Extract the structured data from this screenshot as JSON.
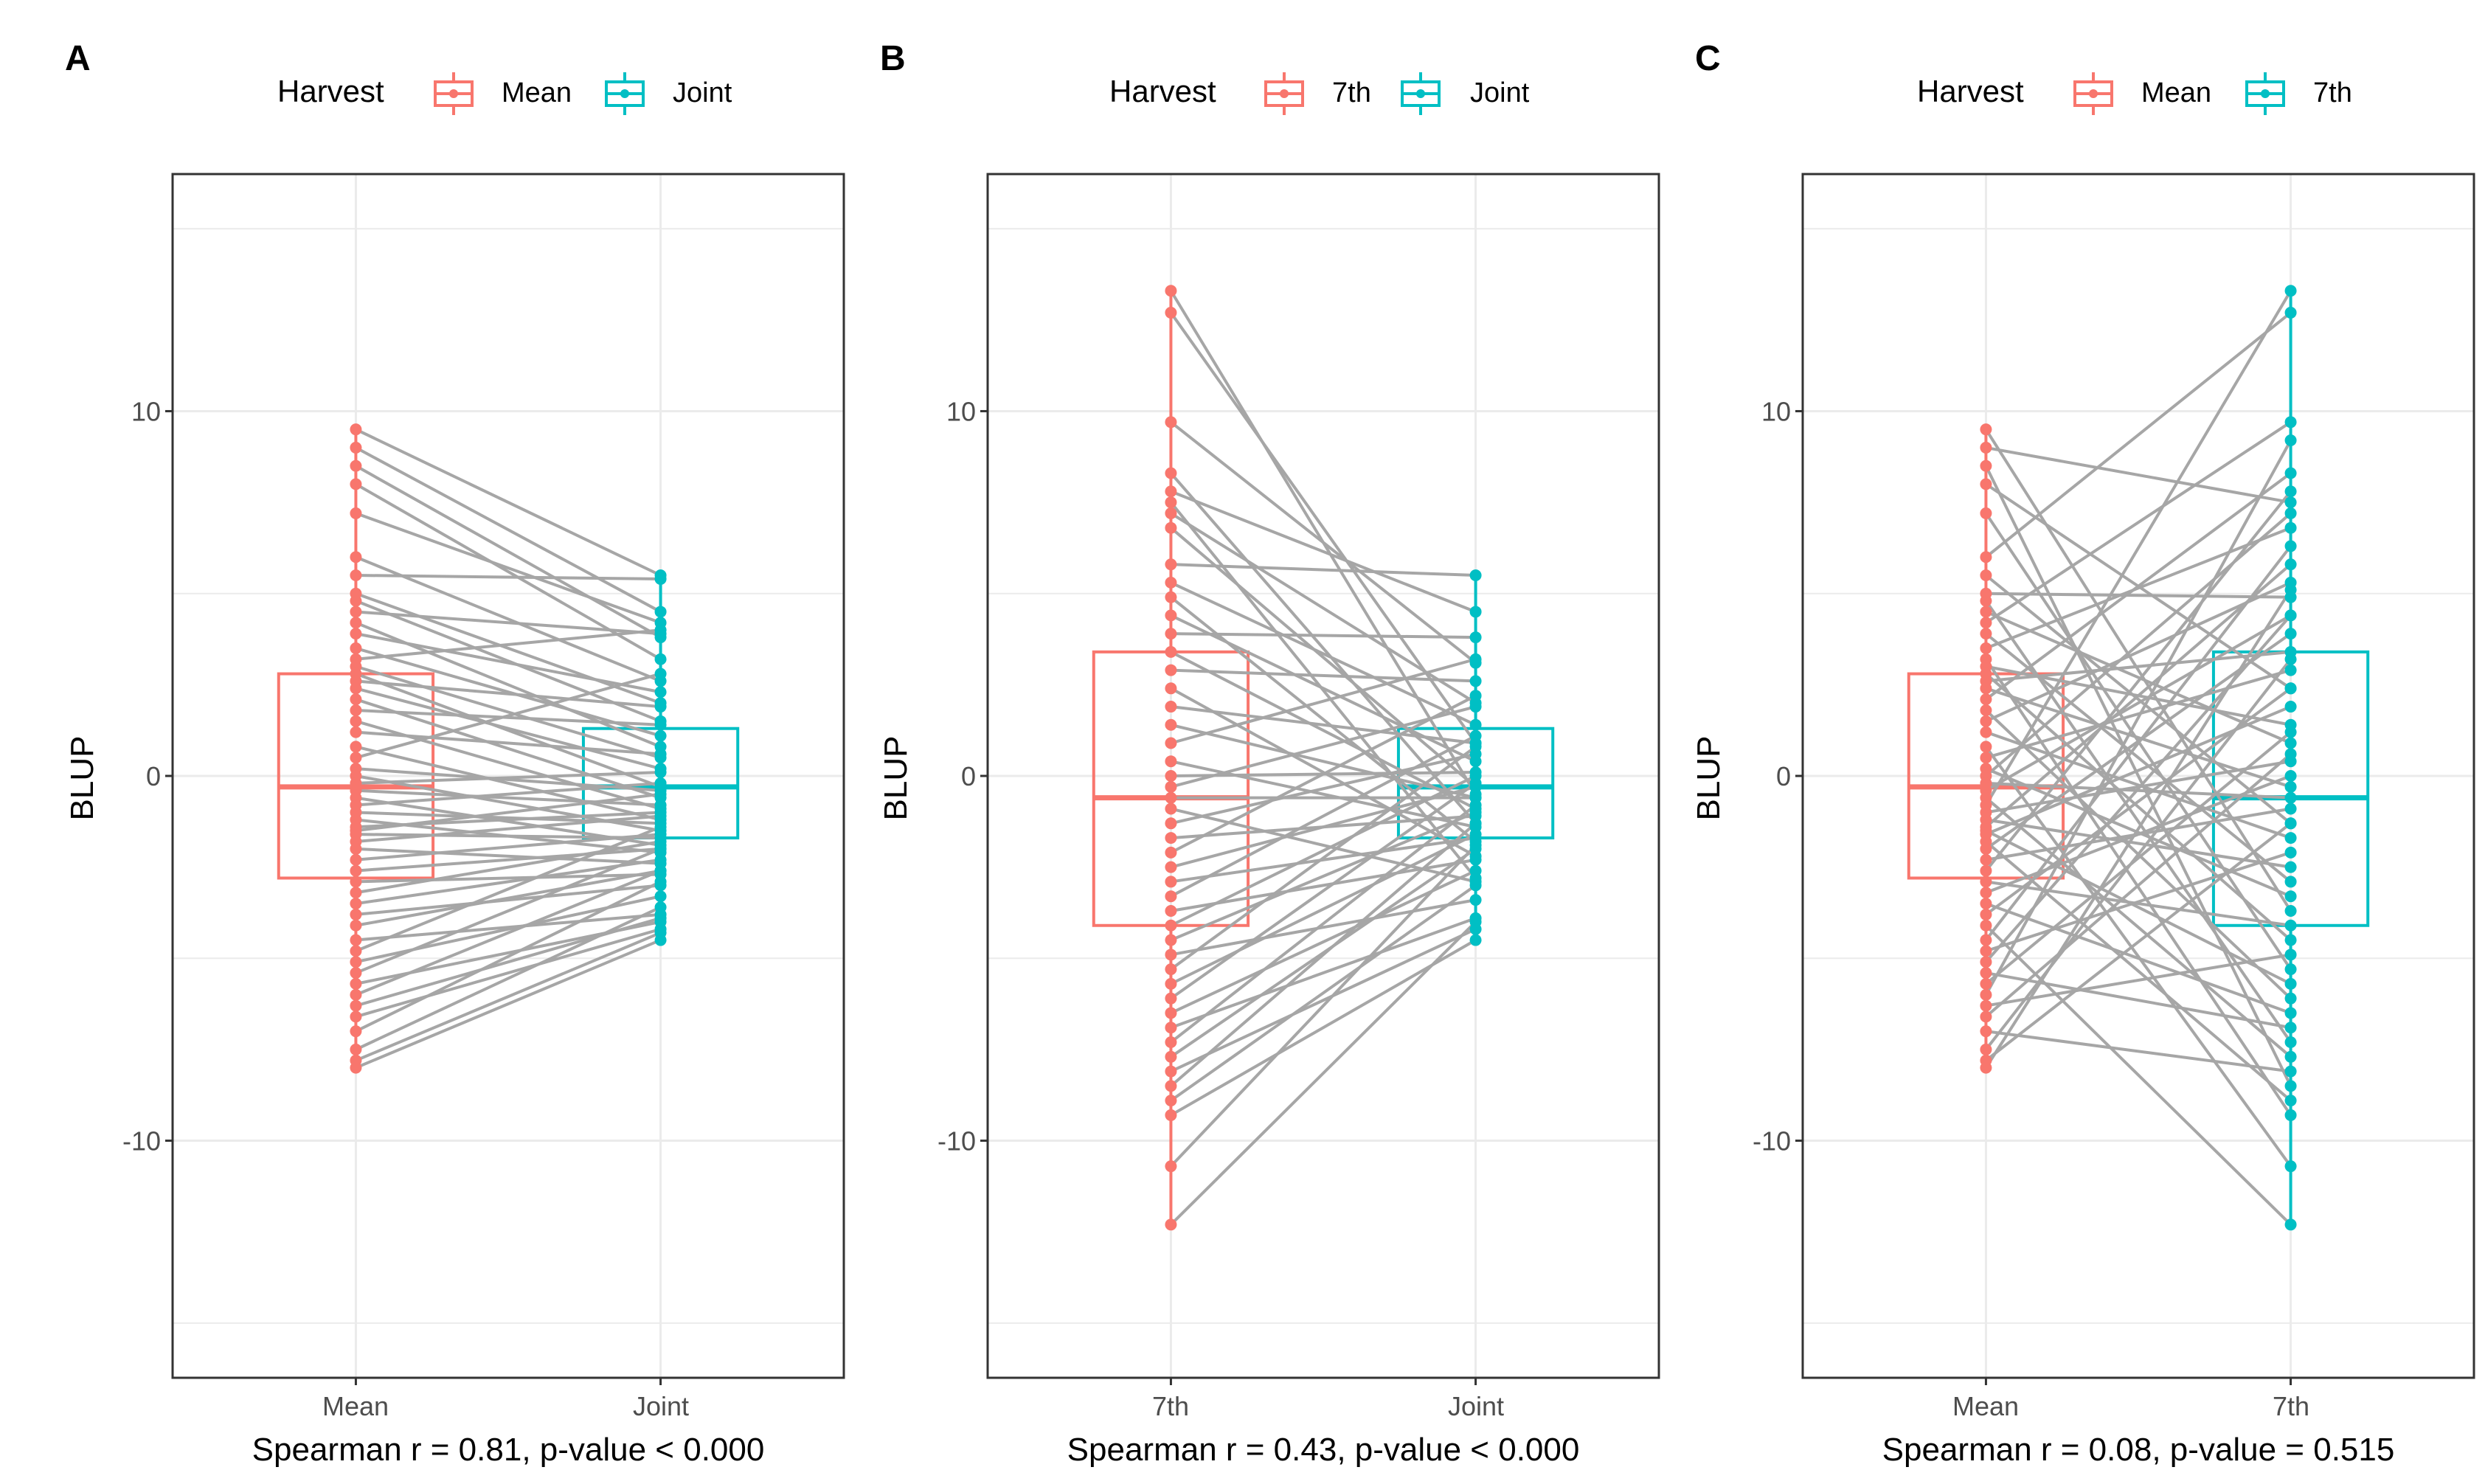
{
  "colors": {
    "first": "#F8766D",
    "second": "#00BFC4",
    "line": "#A6A6A6",
    "grid": "#EBEBEB",
    "panel_border": "#333333",
    "tick_text": "#4D4D4D",
    "text": "#000000"
  },
  "chart_data": [
    {
      "type": "box",
      "panel_tag": "A",
      "legend": {
        "title": "Harvest",
        "entries": [
          "Mean",
          "Joint"
        ],
        "position": "top"
      },
      "categories": [
        "Mean",
        "Joint"
      ],
      "ylabel": "BLUP",
      "ylim": [
        -16.5,
        16.5
      ],
      "yticks": [
        -10,
        0,
        10
      ],
      "grid": true,
      "caption": "Spearman r = 0.81, p-value < 0.000",
      "boxes": [
        {
          "name": "Mean",
          "q1": -2.8,
          "median": -0.3,
          "q3": 2.8,
          "min": -8.0,
          "max": 9.5
        },
        {
          "name": "Joint",
          "q1": -1.7,
          "median": -0.3,
          "q3": 1.3,
          "min": -4.5,
          "max": 5.5
        }
      ],
      "pairs": [
        [
          9.5,
          5.5
        ],
        [
          9.0,
          4.5
        ],
        [
          8.5,
          3.8
        ],
        [
          8.0,
          3.2
        ],
        [
          7.2,
          4.2
        ],
        [
          6.0,
          2.6
        ],
        [
          5.5,
          5.4
        ],
        [
          5.0,
          2.0
        ],
        [
          4.8,
          1.5
        ],
        [
          4.5,
          3.9
        ],
        [
          4.2,
          0.8
        ],
        [
          3.9,
          2.3
        ],
        [
          3.5,
          1.1
        ],
        [
          3.2,
          4.0
        ],
        [
          3.0,
          0.5
        ],
        [
          2.8,
          -0.3
        ],
        [
          2.6,
          1.9
        ],
        [
          2.4,
          0.2
        ],
        [
          2.1,
          -0.6
        ],
        [
          1.8,
          1.4
        ],
        [
          1.5,
          -0.9
        ],
        [
          1.2,
          0.6
        ],
        [
          0.8,
          -1.2
        ],
        [
          0.5,
          2.8
        ],
        [
          0.2,
          -0.4
        ],
        [
          0.0,
          -1.5
        ],
        [
          -0.2,
          0.1
        ],
        [
          -0.4,
          -0.8
        ],
        [
          -0.6,
          -1.9
        ],
        [
          -0.8,
          -0.2
        ],
        [
          -1.0,
          -1.3
        ],
        [
          -1.2,
          -2.1
        ],
        [
          -1.4,
          -1.0
        ],
        [
          -1.5,
          -0.5
        ],
        [
          -1.6,
          -1.7
        ],
        [
          -1.8,
          -1.1
        ],
        [
          -2.0,
          -2.4
        ],
        [
          -2.3,
          -1.6
        ],
        [
          -2.6,
          -2.0
        ],
        [
          -2.9,
          -2.7
        ],
        [
          -3.2,
          -1.8
        ],
        [
          -3.5,
          -2.3
        ],
        [
          -3.8,
          -3.0
        ],
        [
          -4.1,
          -2.6
        ],
        [
          -4.5,
          -3.8
        ],
        [
          -4.8,
          -1.4
        ],
        [
          -5.1,
          -3.3
        ],
        [
          -5.4,
          -2.0
        ],
        [
          -5.7,
          -4.0
        ],
        [
          -6.0,
          -2.6
        ],
        [
          -6.3,
          -3.9
        ],
        [
          -6.6,
          -4.2
        ],
        [
          -7.0,
          -2.9
        ],
        [
          -7.5,
          -3.6
        ],
        [
          -7.8,
          -4.3
        ],
        [
          -8.0,
          -4.5
        ]
      ]
    },
    {
      "type": "box",
      "panel_tag": "B",
      "legend": {
        "title": "Harvest",
        "entries": [
          "7th",
          "Joint"
        ],
        "position": "top"
      },
      "categories": [
        "7th",
        "Joint"
      ],
      "ylabel": "BLUP",
      "ylim": [
        -16.5,
        16.5
      ],
      "yticks": [
        -10,
        0,
        10
      ],
      "grid": true,
      "caption": "Spearman r = 0.43, p-value < 0.000",
      "boxes": [
        {
          "name": "7th",
          "q1": -4.1,
          "median": -0.6,
          "q3": 3.4,
          "min": -12.3,
          "max": 13.3
        },
        {
          "name": "Joint",
          "q1": -1.7,
          "median": -0.3,
          "q3": 1.3,
          "min": -4.5,
          "max": 5.5
        }
      ],
      "pairs": [
        [
          13.3,
          -0.5
        ],
        [
          12.7,
          0.9
        ],
        [
          9.7,
          3.1
        ],
        [
          8.3,
          -1.3
        ],
        [
          7.8,
          4.5
        ],
        [
          7.5,
          -2.8
        ],
        [
          7.2,
          2.0
        ],
        [
          6.8,
          -0.3
        ],
        [
          5.8,
          5.5
        ],
        [
          5.3,
          1.4
        ],
        [
          4.9,
          -1.8
        ],
        [
          4.4,
          0.4
        ],
        [
          3.9,
          3.8
        ],
        [
          3.4,
          -0.9
        ],
        [
          2.9,
          2.6
        ],
        [
          2.4,
          -2.2
        ],
        [
          1.9,
          0.9
        ],
        [
          1.4,
          -0.6
        ],
        [
          0.9,
          3.2
        ],
        [
          0.4,
          -1.4
        ],
        [
          0.0,
          0.1
        ],
        [
          -0.3,
          1.9
        ],
        [
          -0.6,
          -0.6
        ],
        [
          -0.9,
          -2.9
        ],
        [
          -1.3,
          0.6
        ],
        [
          -1.7,
          -1.1
        ],
        [
          -2.1,
          2.2
        ],
        [
          -2.5,
          -0.3
        ],
        [
          -2.9,
          -1.7
        ],
        [
          -3.3,
          1.1
        ],
        [
          -3.7,
          -2.3
        ],
        [
          -4.1,
          0.0
        ],
        [
          -4.5,
          -1.0
        ],
        [
          -4.9,
          -3.4
        ],
        [
          -5.3,
          0.8
        ],
        [
          -5.7,
          -1.6
        ],
        [
          -6.1,
          -0.2
        ],
        [
          -6.5,
          -2.6
        ],
        [
          -6.9,
          -3.9
        ],
        [
          -7.3,
          -0.8
        ],
        [
          -7.7,
          -2.0
        ],
        [
          -8.1,
          -4.2
        ],
        [
          -8.5,
          -1.3
        ],
        [
          -8.9,
          -3.0
        ],
        [
          -9.3,
          -4.5
        ],
        [
          -10.7,
          -1.9
        ],
        [
          -12.3,
          -4.0
        ]
      ]
    },
    {
      "type": "box",
      "panel_tag": "C",
      "legend": {
        "title": "Harvest",
        "entries": [
          "Mean",
          "7th"
        ],
        "position": "top"
      },
      "categories": [
        "Mean",
        "7th"
      ],
      "ylabel": "BLUP",
      "ylim": [
        -16.5,
        16.5
      ],
      "yticks": [
        -10,
        0,
        10
      ],
      "grid": true,
      "caption": "Spearman r = 0.08, p-value = 0.515",
      "boxes": [
        {
          "name": "Mean",
          "q1": -2.8,
          "median": -0.3,
          "q3": 2.8,
          "min": -8.0,
          "max": 9.5
        },
        {
          "name": "7th",
          "q1": -4.1,
          "median": -0.6,
          "q3": 3.4,
          "min": -12.3,
          "max": 13.3
        }
      ],
      "pairs": [
        [
          9.5,
          -3.7
        ],
        [
          9.0,
          7.5
        ],
        [
          8.5,
          -8.5
        ],
        [
          8.0,
          2.4
        ],
        [
          7.2,
          -5.3
        ],
        [
          6.0,
          12.7
        ],
        [
          5.5,
          -1.3
        ],
        [
          5.0,
          4.9
        ],
        [
          4.8,
          -7.3
        ],
        [
          4.5,
          0.9
        ],
        [
          4.2,
          9.7
        ],
        [
          3.9,
          -2.9
        ],
        [
          3.5,
          6.8
        ],
        [
          3.2,
          -9.3
        ],
        [
          3.0,
          1.4
        ],
        [
          2.8,
          -4.5
        ],
        [
          2.6,
          3.4
        ],
        [
          2.4,
          -0.3
        ],
        [
          2.1,
          8.3
        ],
        [
          1.8,
          -6.1
        ],
        [
          1.5,
          5.3
        ],
        [
          1.2,
          -1.7
        ],
        [
          0.8,
          -10.7
        ],
        [
          0.5,
          2.9
        ],
        [
          0.2,
          -3.3
        ],
        [
          0.0,
          7.2
        ],
        [
          -0.2,
          -0.6
        ],
        [
          -0.4,
          4.4
        ],
        [
          -0.6,
          -7.7
        ],
        [
          -0.8,
          13.3
        ],
        [
          -1.0,
          0.4
        ],
        [
          -1.2,
          -2.5
        ],
        [
          -1.4,
          5.8
        ],
        [
          -1.5,
          -5.7
        ],
        [
          -1.6,
          1.9
        ],
        [
          -1.8,
          -8.9
        ],
        [
          -2.0,
          3.9
        ],
        [
          -2.3,
          -0.9
        ],
        [
          -2.6,
          7.8
        ],
        [
          -2.9,
          -4.1
        ],
        [
          -3.2,
          0.0
        ],
        [
          -3.5,
          -6.5
        ],
        [
          -3.8,
          2.4
        ],
        [
          -4.1,
          -12.3
        ],
        [
          -4.5,
          6.3
        ],
        [
          -4.8,
          -2.1
        ],
        [
          -5.1,
          4.4
        ],
        [
          -5.4,
          -6.9
        ],
        [
          -5.7,
          1.2
        ],
        [
          -6.0,
          9.2
        ],
        [
          -6.3,
          -4.9
        ],
        [
          -6.6,
          0.6
        ],
        [
          -7.0,
          -8.1
        ],
        [
          -7.5,
          3.2
        ],
        [
          -7.8,
          -1.3
        ],
        [
          -8.0,
          5.1
        ]
      ]
    }
  ]
}
